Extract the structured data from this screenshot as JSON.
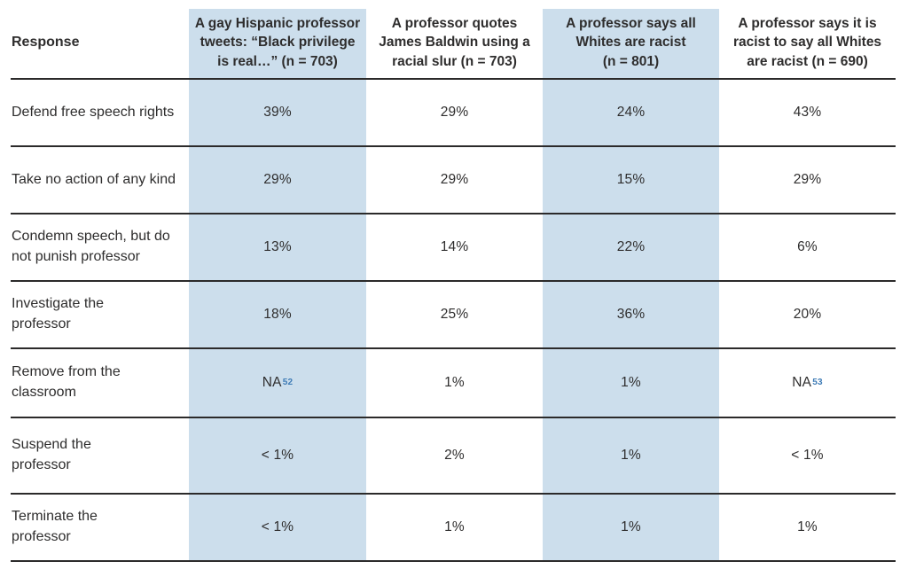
{
  "table": {
    "response_header": "Response",
    "columns": [
      {
        "label": "A gay Hispanic professor\ntweets: “Black privilege\nis real…” (n = 703)",
        "highlighted": true
      },
      {
        "label": "A professor quotes\nJames Baldwin using a\nracial slur (n = 703)",
        "highlighted": false
      },
      {
        "label": "A professor says all\nWhites are racist\n(n = 801)",
        "highlighted": true
      },
      {
        "label": "A professor says it is\nracist to say all Whites\nare racist (n = 690)",
        "highlighted": false
      }
    ],
    "rows": [
      {
        "label": "Defend free speech rights",
        "values": [
          {
            "text": "39%"
          },
          {
            "text": "29%"
          },
          {
            "text": "24%"
          },
          {
            "text": "43%"
          }
        ]
      },
      {
        "label": "Take no action of any kind",
        "values": [
          {
            "text": "29%"
          },
          {
            "text": "29%"
          },
          {
            "text": "15%"
          },
          {
            "text": "29%"
          }
        ]
      },
      {
        "label": "Condemn speech, but do\nnot punish professor",
        "values": [
          {
            "text": "13%"
          },
          {
            "text": "14%"
          },
          {
            "text": "22%"
          },
          {
            "text": "6%"
          }
        ]
      },
      {
        "label": "Investigate the\nprofessor",
        "values": [
          {
            "text": "18%"
          },
          {
            "text": "25%"
          },
          {
            "text": "36%"
          },
          {
            "text": "20%"
          }
        ]
      },
      {
        "label": "Remove from the\nclassroom",
        "values": [
          {
            "text": "NA",
            "sup": "52"
          },
          {
            "text": "1%"
          },
          {
            "text": "1%"
          },
          {
            "text": "NA",
            "sup": "53"
          }
        ]
      },
      {
        "label": "Suspend the\nprofessor",
        "values": [
          {
            "text": "< 1%"
          },
          {
            "text": "2%"
          },
          {
            "text": "1%"
          },
          {
            "text": "< 1%"
          }
        ]
      },
      {
        "label": "Terminate the\nprofessor",
        "values": [
          {
            "text": "< 1%"
          },
          {
            "text": "1%"
          },
          {
            "text": "1%"
          },
          {
            "text": "1%"
          }
        ]
      }
    ],
    "colors": {
      "highlight": "#ccdeec",
      "text": "#2e2d2d",
      "rule": "#2b2a2a",
      "footnote": "#3f7cb6"
    }
  },
  "chart_data": {
    "type": "table",
    "title": "Responses to four professor-speech scenarios",
    "row_header": "Response",
    "columns": [
      "A gay Hispanic professor tweets: “Black privilege is real…” (n = 703)",
      "A professor quotes James Baldwin using a racial slur (n = 703)",
      "A professor says all Whites are racist (n = 801)",
      "A professor says it is racist to say all Whites are racist (n = 690)"
    ],
    "highlighted_columns": [
      0,
      2
    ],
    "rows": [
      "Defend free speech rights",
      "Take no action of any kind",
      "Condemn speech, but do not punish professor",
      "Investigate the professor",
      "Remove from the classroom",
      "Suspend the professor",
      "Terminate the professor"
    ],
    "values": [
      [
        "39%",
        "29%",
        "24%",
        "43%"
      ],
      [
        "29%",
        "29%",
        "15%",
        "29%"
      ],
      [
        "13%",
        "14%",
        "22%",
        "6%"
      ],
      [
        "18%",
        "25%",
        "36%",
        "20%"
      ],
      [
        "NA[52]",
        "1%",
        "1%",
        "NA[53]"
      ],
      [
        "< 1%",
        "2%",
        "1%",
        "< 1%"
      ],
      [
        "< 1%",
        "1%",
        "1%",
        "1%"
      ]
    ],
    "footnotes": [
      "52",
      "53"
    ]
  }
}
